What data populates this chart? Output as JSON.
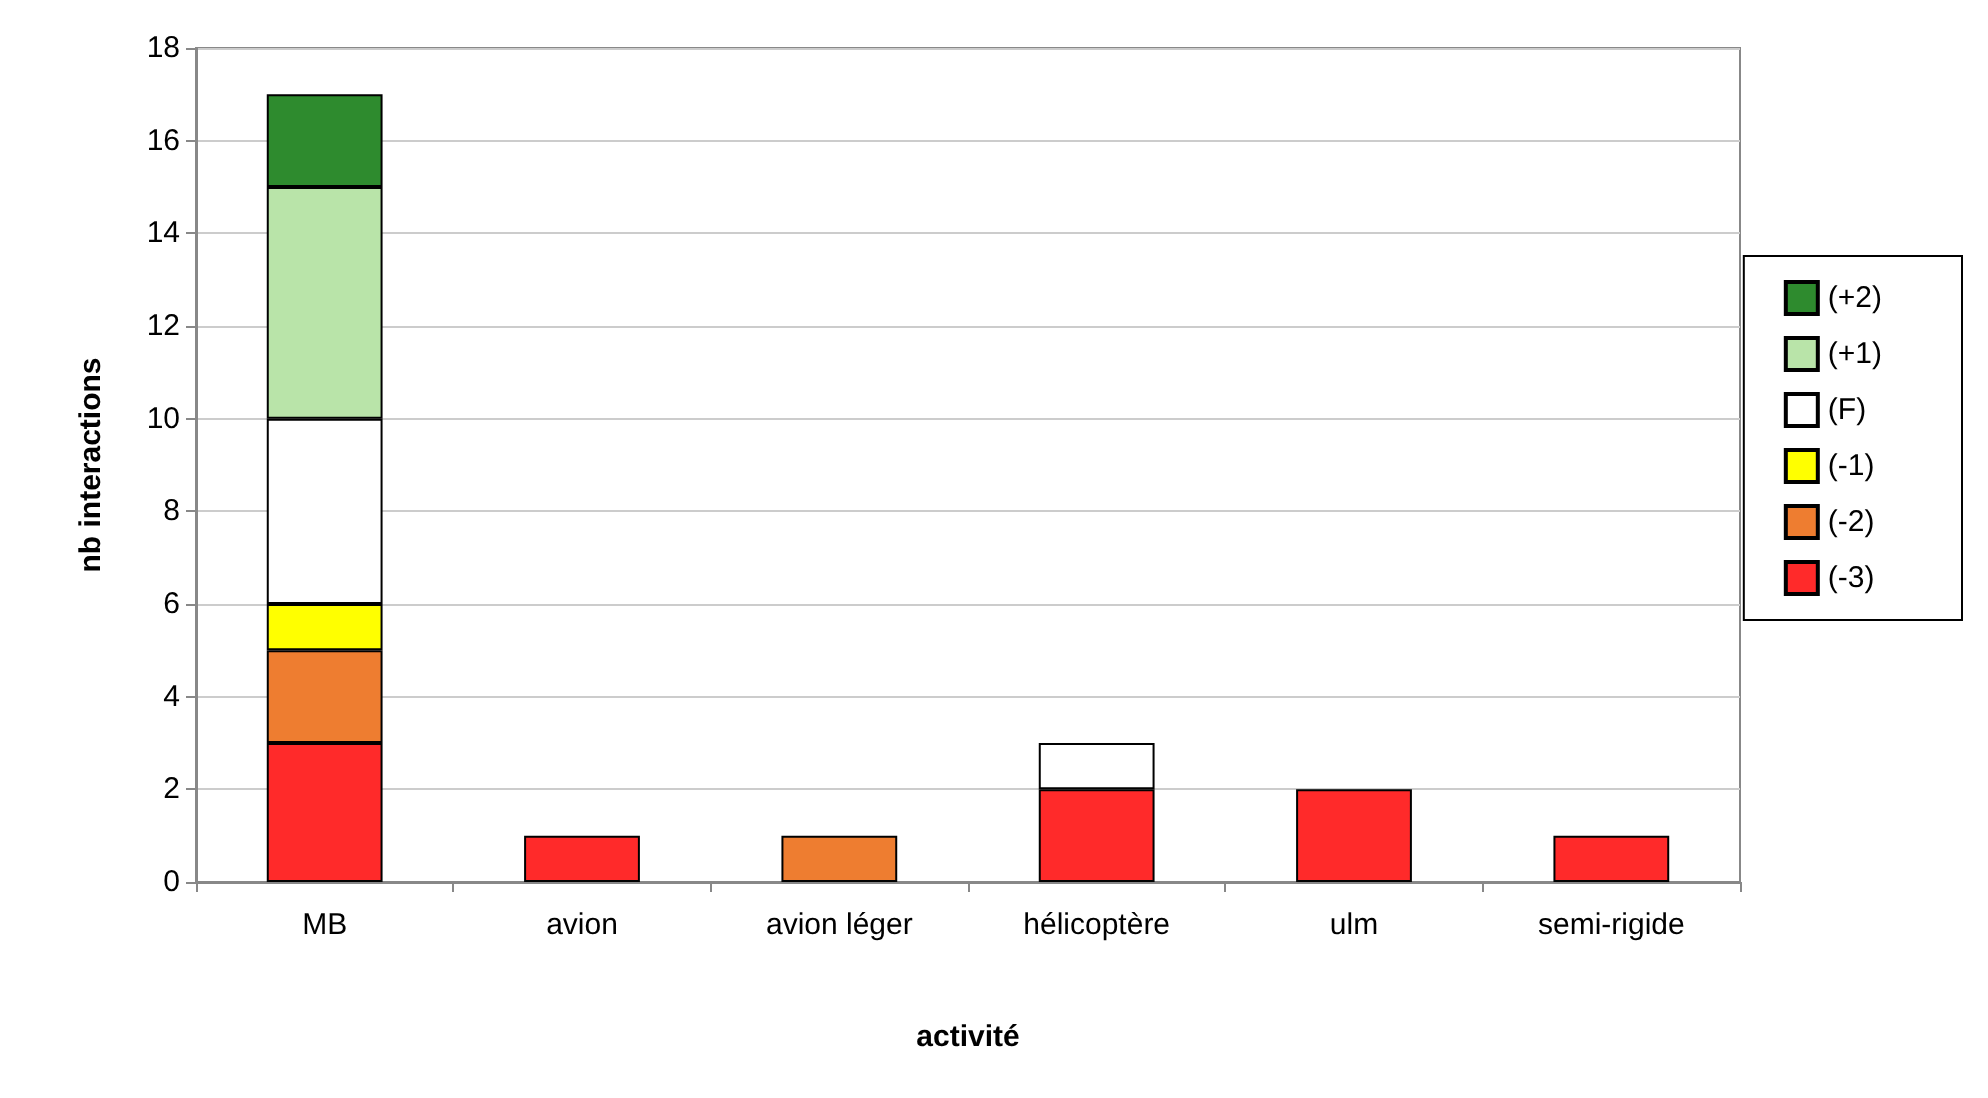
{
  "chart_data": {
    "type": "bar",
    "stacked": true,
    "xlabel": "activité",
    "ylabel": "nb interactions",
    "categories": [
      "MB",
      "avion",
      "avion léger",
      "hélicoptère",
      "ulm",
      "semi-rigide"
    ],
    "series": [
      {
        "name": "(-3)",
        "color": "#ff2a2a",
        "values": [
          3,
          1,
          null,
          2,
          2,
          1
        ]
      },
      {
        "name": "(-2)",
        "color": "#ee7d30",
        "values": [
          2,
          null,
          1,
          null,
          null,
          null
        ]
      },
      {
        "name": "(-1)",
        "color": "#ffff00",
        "values": [
          1,
          null,
          null,
          null,
          null,
          null
        ]
      },
      {
        "name": "(F)",
        "color": "#ffffff",
        "values": [
          4,
          null,
          null,
          1,
          null,
          null
        ]
      },
      {
        "name": "(+1)",
        "color": "#b9e4a9",
        "values": [
          5,
          null,
          null,
          null,
          null,
          null
        ]
      },
      {
        "name": "(+2)",
        "color": "#2e8b2e",
        "values": [
          2,
          null,
          null,
          null,
          null,
          null
        ]
      }
    ],
    "ylim": [
      0,
      18
    ],
    "yticks": [
      0,
      2,
      4,
      6,
      8,
      10,
      12,
      14,
      16,
      18
    ],
    "grid": "y",
    "legend": "right"
  }
}
